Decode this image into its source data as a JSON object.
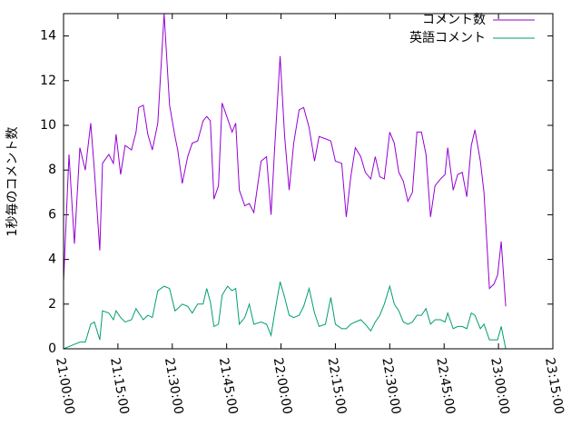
{
  "chart_data": {
    "type": "line",
    "ylabel": "1秒毎のコメント数",
    "x": [
      "21:00:00",
      "21:01:30",
      "21:03:00",
      "21:04:30",
      "21:06:00",
      "21:07:30",
      "21:08:30",
      "21:10:00",
      "21:10:45",
      "21:12:30",
      "21:13:45",
      "21:14:30",
      "21:15:45",
      "21:17:00",
      "21:18:45",
      "21:20:00",
      "21:20:45",
      "21:22:00",
      "21:23:15",
      "21:24:30",
      "21:26:00",
      "21:27:45",
      "21:29:15",
      "21:30:45",
      "21:31:30",
      "21:32:45",
      "21:34:15",
      "21:35:30",
      "21:37:00",
      "21:38:30",
      "21:39:30",
      "21:40:30",
      "21:41:30",
      "21:42:45",
      "21:43:45",
      "21:45:15",
      "21:46:30",
      "21:47:30",
      "21:48:30",
      "21:50:00",
      "21:51:15",
      "21:52:30",
      "21:54:30",
      "21:56:00",
      "21:57:15",
      "21:58:15",
      "21:59:45",
      "22:01:00",
      "22:02:15",
      "22:03:30",
      "22:05:00",
      "22:06:15",
      "22:07:45",
      "22:09:15",
      "22:10:30",
      "22:12:15",
      "22:13:45",
      "22:15:00",
      "22:16:45",
      "22:18:00",
      "22:19:15",
      "22:20:30",
      "22:22:00",
      "22:23:15",
      "22:24:45",
      "22:26:00",
      "22:27:15",
      "22:28:30",
      "22:30:00",
      "22:31:15",
      "22:32:30",
      "22:33:45",
      "22:35:00",
      "22:36:15",
      "22:37:30",
      "22:38:45",
      "22:40:00",
      "22:41:15",
      "22:42:30",
      "22:44:00",
      "22:45:15",
      "22:46:00",
      "22:47:30",
      "22:48:45",
      "22:50:00",
      "22:51:15",
      "22:52:30",
      "22:53:30",
      "22:55:00",
      "22:56:00",
      "22:57:30",
      "22:58:45",
      "22:59:45",
      "23:00:45",
      "23:02:00"
    ],
    "series": [
      {
        "name": "コメント数",
        "color": "#9400d3",
        "values": [
          3.0,
          8.7,
          4.7,
          9.0,
          8.0,
          10.1,
          8.0,
          4.4,
          8.3,
          8.7,
          8.3,
          9.6,
          7.8,
          9.1,
          8.9,
          9.7,
          10.8,
          10.9,
          9.6,
          8.9,
          10.1,
          15.0,
          10.9,
          9.5,
          8.9,
          7.4,
          8.6,
          9.2,
          9.3,
          10.2,
          10.4,
          10.2,
          6.7,
          7.3,
          11.0,
          10.3,
          9.7,
          10.1,
          7.1,
          6.4,
          6.5,
          6.1,
          8.4,
          8.6,
          6.0,
          9.0,
          13.1,
          9.5,
          7.1,
          9.2,
          10.7,
          10.8,
          9.9,
          8.4,
          9.5,
          9.4,
          9.3,
          8.4,
          8.3,
          5.9,
          7.7,
          9.0,
          8.6,
          7.9,
          7.6,
          8.6,
          7.7,
          7.6,
          9.7,
          9.2,
          7.9,
          7.5,
          6.6,
          7.0,
          9.7,
          9.7,
          8.7,
          5.9,
          7.3,
          7.6,
          7.8,
          9.0,
          7.1,
          7.8,
          7.9,
          6.8,
          9.1,
          9.8,
          8.4,
          7.0,
          2.7,
          2.9,
          3.3,
          4.8,
          1.9
        ]
      },
      {
        "name": "英語コメント",
        "color": "#009e73",
        "values": [
          0,
          0.1,
          0.2,
          0.3,
          0.3,
          1.1,
          1.2,
          0.4,
          1.7,
          1.6,
          1.3,
          1.7,
          1.4,
          1.2,
          1.3,
          1.8,
          1.6,
          1.3,
          1.5,
          1.4,
          2.6,
          2.8,
          2.7,
          1.7,
          1.8,
          2.0,
          1.9,
          1.6,
          2.0,
          2.0,
          2.7,
          2.1,
          1.0,
          1.1,
          2.4,
          2.8,
          2.6,
          2.7,
          1.1,
          1.4,
          2.0,
          1.1,
          1.2,
          1.1,
          0.6,
          1.6,
          3.0,
          2.3,
          1.5,
          1.4,
          1.5,
          1.9,
          2.7,
          1.6,
          1.0,
          1.1,
          2.3,
          1.1,
          0.9,
          0.9,
          1.1,
          1.2,
          1.3,
          1.1,
          0.8,
          1.2,
          1.5,
          2.0,
          2.8,
          2.0,
          1.7,
          1.2,
          1.1,
          1.2,
          1.5,
          1.5,
          1.8,
          1.1,
          1.3,
          1.3,
          1.2,
          1.6,
          0.9,
          1.0,
          1.0,
          0.9,
          1.6,
          1.5,
          0.9,
          1.1,
          0.4,
          0.4,
          0.4,
          1.0,
          0.0
        ]
      }
    ],
    "xlim": [
      "21:00:00",
      "23:15:00"
    ],
    "xticks": [
      "21:00:00",
      "21:15:00",
      "21:30:00",
      "21:45:00",
      "22:00:00",
      "22:15:00",
      "22:30:00",
      "22:45:00",
      "23:00:00",
      "23:15:00"
    ],
    "ylim": [
      0,
      15
    ],
    "yticks": [
      0,
      2,
      4,
      6,
      8,
      10,
      12,
      14
    ],
    "legend": "top-right"
  }
}
